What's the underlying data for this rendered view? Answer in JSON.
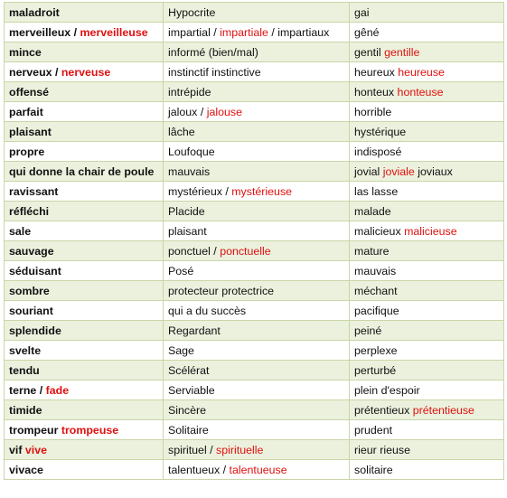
{
  "rows": [
    [
      [
        {
          "t": "maladroit"
        }
      ],
      [
        {
          "t": "Hypocrite"
        }
      ],
      [
        {
          "t": "gai"
        }
      ]
    ],
    [
      [
        {
          "t": "merveilleux / "
        },
        {
          "t": "merveilleuse",
          "red": true
        }
      ],
      [
        {
          "t": "impartial / "
        },
        {
          "t": "impartiale",
          "red": true
        },
        {
          "t": " / impartiaux"
        }
      ],
      [
        {
          "t": "gêné"
        }
      ]
    ],
    [
      [
        {
          "t": "mince"
        }
      ],
      [
        {
          "t": "informé (bien/mal)"
        }
      ],
      [
        {
          "t": "gentil "
        },
        {
          "t": "gentille",
          "red": true
        }
      ]
    ],
    [
      [
        {
          "t": "nerveux / "
        },
        {
          "t": "nerveuse",
          "red": true
        }
      ],
      [
        {
          "t": "instinctif instinctive"
        }
      ],
      [
        {
          "t": "heureux "
        },
        {
          "t": "heureuse",
          "red": true
        }
      ]
    ],
    [
      [
        {
          "t": "offensé"
        }
      ],
      [
        {
          "t": "intrépide"
        }
      ],
      [
        {
          "t": "honteux "
        },
        {
          "t": "honteuse",
          "red": true
        }
      ]
    ],
    [
      [
        {
          "t": "parfait"
        }
      ],
      [
        {
          "t": "jaloux / "
        },
        {
          "t": "jalouse",
          "red": true
        }
      ],
      [
        {
          "t": "horrible"
        }
      ]
    ],
    [
      [
        {
          "t": "plaisant"
        }
      ],
      [
        {
          "t": "lâche"
        }
      ],
      [
        {
          "t": "hystérique"
        }
      ]
    ],
    [
      [
        {
          "t": "propre"
        }
      ],
      [
        {
          "t": "Loufoque"
        }
      ],
      [
        {
          "t": "indisposé"
        }
      ]
    ],
    [
      [
        {
          "t": "qui donne la chair de poule"
        }
      ],
      [
        {
          "t": "mauvais"
        }
      ],
      [
        {
          "t": "jovial "
        },
        {
          "t": "joviale",
          "red": true
        },
        {
          "t": " joviaux"
        }
      ]
    ],
    [
      [
        {
          "t": "ravissant"
        }
      ],
      [
        {
          "t": "mystérieux / "
        },
        {
          "t": "mystérieuse",
          "red": true
        }
      ],
      [
        {
          "t": "las lasse"
        }
      ]
    ],
    [
      [
        {
          "t": "réfléchi"
        }
      ],
      [
        {
          "t": "Placide"
        }
      ],
      [
        {
          "t": "malade"
        }
      ]
    ],
    [
      [
        {
          "t": "sale"
        }
      ],
      [
        {
          "t": "plaisant"
        }
      ],
      [
        {
          "t": "malicieux "
        },
        {
          "t": "malicieuse",
          "red": true
        }
      ]
    ],
    [
      [
        {
          "t": "sauvage"
        }
      ],
      [
        {
          "t": "ponctuel / "
        },
        {
          "t": "ponctuelle",
          "red": true
        }
      ],
      [
        {
          "t": "mature"
        }
      ]
    ],
    [
      [
        {
          "t": "séduisant"
        }
      ],
      [
        {
          "t": "Posé"
        }
      ],
      [
        {
          "t": "mauvais"
        }
      ]
    ],
    [
      [
        {
          "t": "sombre"
        }
      ],
      [
        {
          "t": "protecteur protectrice"
        }
      ],
      [
        {
          "t": "méchant"
        }
      ]
    ],
    [
      [
        {
          "t": "souriant"
        }
      ],
      [
        {
          "t": "qui a du succès"
        }
      ],
      [
        {
          "t": "pacifique"
        }
      ]
    ],
    [
      [
        {
          "t": "splendide"
        }
      ],
      [
        {
          "t": "Regardant"
        }
      ],
      [
        {
          "t": "peiné"
        }
      ]
    ],
    [
      [
        {
          "t": "svelte"
        }
      ],
      [
        {
          "t": "Sage"
        }
      ],
      [
        {
          "t": "perplexe"
        }
      ]
    ],
    [
      [
        {
          "t": "tendu"
        }
      ],
      [
        {
          "t": "Scélérat"
        }
      ],
      [
        {
          "t": "perturbé"
        }
      ]
    ],
    [
      [
        {
          "t": "terne / "
        },
        {
          "t": "fade",
          "red": true
        }
      ],
      [
        {
          "t": "Serviable"
        }
      ],
      [
        {
          "t": "plein d'espoir"
        }
      ]
    ],
    [
      [
        {
          "t": "timide"
        }
      ],
      [
        {
          "t": "Sincère"
        }
      ],
      [
        {
          "t": "prétentieux "
        },
        {
          "t": "prétentieuse",
          "red": true
        }
      ]
    ],
    [
      [
        {
          "t": "trompeur "
        },
        {
          "t": "trompeuse",
          "red": true
        }
      ],
      [
        {
          "t": "Solitaire"
        }
      ],
      [
        {
          "t": "prudent"
        }
      ]
    ],
    [
      [
        {
          "t": "vif "
        },
        {
          "t": "vive",
          "red": true
        }
      ],
      [
        {
          "t": "spirituel / "
        },
        {
          "t": "spirituelle",
          "red": true
        }
      ],
      [
        {
          "t": "rieur rieuse"
        }
      ]
    ],
    [
      [
        {
          "t": "vivace"
        }
      ],
      [
        {
          "t": "talentueux / "
        },
        {
          "t": "talentueuse",
          "red": true
        }
      ],
      [
        {
          "t": "solitaire"
        }
      ]
    ]
  ],
  "colors": {
    "feminine_form": "#e0100f",
    "odd_row_bg": "#ebf1dd",
    "border": "#c8d6a8"
  }
}
